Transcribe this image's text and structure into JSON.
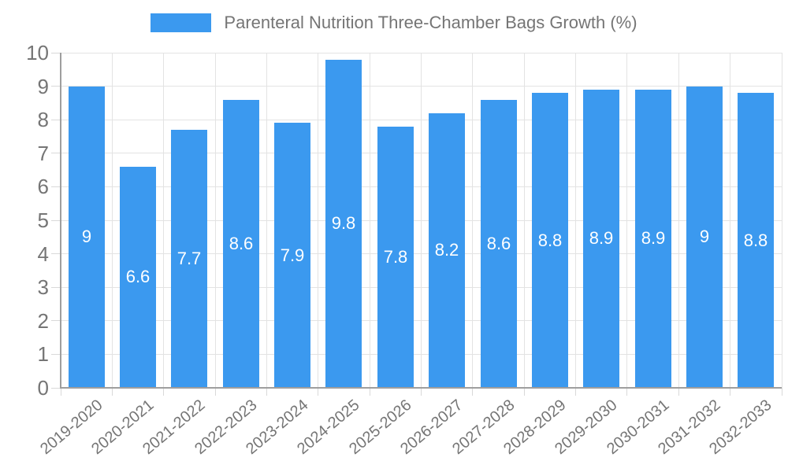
{
  "chart_data": {
    "type": "bar",
    "title": "Parenteral Nutrition Three-Chamber Bags Growth (%)",
    "legend": {
      "position": "top",
      "label": "Parenteral Nutrition Three-Chamber Bags Growth (%)",
      "swatch_color": "#3B99EF"
    },
    "categories": [
      "2019-2020",
      "2020-2021",
      "2021-2022",
      "2022-2023",
      "2023-2024",
      "2024-2025",
      "2025-2026",
      "2026-2027",
      "2027-2028",
      "2028-2029",
      "2029-2030",
      "2030-2031",
      "2031-2032",
      "2032-2033"
    ],
    "values": [
      9,
      6.6,
      7.7,
      8.6,
      7.9,
      9.8,
      7.8,
      8.2,
      8.6,
      8.8,
      8.9,
      8.9,
      9,
      8.8
    ],
    "value_labels": [
      "9",
      "6.6",
      "7.7",
      "8.6",
      "7.9",
      "9.8",
      "7.8",
      "8.2",
      "8.6",
      "8.8",
      "8.9",
      "8.9",
      "9",
      "8.8"
    ],
    "xlabel": "",
    "ylabel": "",
    "ylim": [
      0,
      10
    ],
    "y_ticks": [
      0,
      1,
      2,
      3,
      4,
      5,
      6,
      7,
      8,
      9,
      10
    ],
    "grid": "both",
    "x_tick_rotation_deg": -40,
    "colors": {
      "bar": "#3B99EF",
      "bar_value_text": "#FFFFFF",
      "axis_text": "#757575",
      "gridline": "#E3E3E3",
      "tick_mark": "#D9D9D9",
      "axis_line": "#9E9E9E",
      "background": "#FFFFFF"
    }
  }
}
